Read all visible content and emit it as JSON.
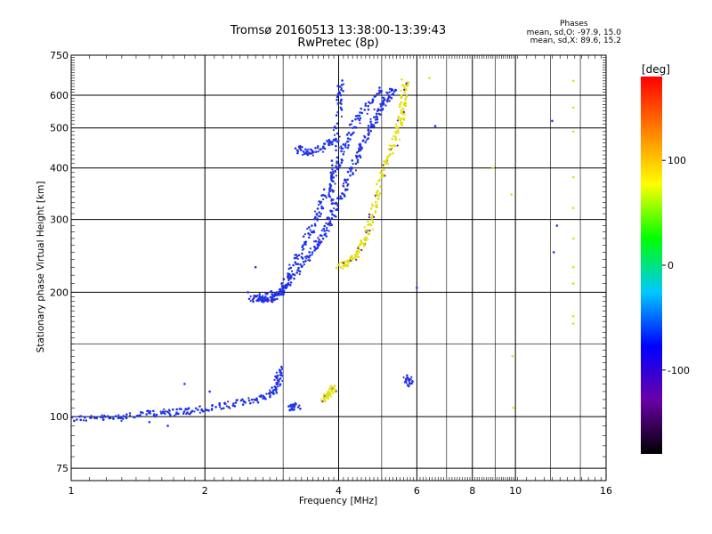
{
  "header": {
    "title_line1": "Tromsø 20160513 13:38:00-13:39:43",
    "title_line2": "RwPretec (8p)"
  },
  "phases_box": {
    "title": "Phases",
    "line_o": "mean, sd,O: -97.9, 15.0",
    "line_x": "mean, sd,X:  89.6, 15.2"
  },
  "chart_data": {
    "type": "scatter",
    "xlabel": "Frequency [MHz]",
    "ylabel": "Stationary phase Virtual Height [km]",
    "x_scale": "log",
    "y_scale": "log",
    "xlim": [
      1,
      16
    ],
    "ylim": [
      70,
      750
    ],
    "x_ticks": [
      1,
      2,
      4,
      6,
      8,
      10,
      16
    ],
    "x_minor_ticks": [
      3,
      5,
      7,
      9,
      12,
      14
    ],
    "y_ticks": [
      75,
      100,
      200,
      300,
      400,
      500,
      600,
      750
    ],
    "y_minor_ticks": [
      150
    ],
    "grid": true,
    "colorbar": {
      "label": "[deg]",
      "range": [
        -180,
        180
      ],
      "ticks": [
        -100,
        0,
        100
      ],
      "colors": [
        "#000000",
        "#6a00a8",
        "#0000ff",
        "#00c8ff",
        "#00ff00",
        "#ffff00",
        "#ff8000",
        "#ff0000"
      ]
    },
    "series": [
      {
        "polarization": "O",
        "color": "#1a33ee",
        "segments": [
          {
            "points": [
              [
                1.0,
                99
              ],
              [
                1.2,
                99
              ],
              [
                1.4,
                101
              ],
              [
                1.6,
                102
              ],
              [
                1.8,
                103
              ],
              [
                2.0,
                104
              ],
              [
                2.3,
                107
              ],
              [
                2.6,
                110
              ],
              [
                2.85,
                114
              ],
              [
                2.92,
                122
              ],
              [
                2.95,
                130
              ]
            ]
          },
          {
            "points": [
              [
                2.55,
                193
              ],
              [
                2.7,
                192
              ],
              [
                2.85,
                193
              ],
              [
                2.95,
                199
              ],
              [
                3.05,
                210
              ],
              [
                3.3,
                232
              ],
              [
                3.5,
                252
              ],
              [
                3.7,
                277
              ],
              [
                3.9,
                310
              ],
              [
                4.1,
                350
              ],
              [
                4.3,
                400
              ],
              [
                4.5,
                450
              ],
              [
                4.7,
                500
              ],
              [
                4.9,
                540
              ],
              [
                5.1,
                580
              ],
              [
                5.3,
                620
              ]
            ]
          },
          {
            "points": [
              [
                2.55,
                193
              ],
              [
                2.95,
                199
              ],
              [
                3.1,
                220
              ],
              [
                3.3,
                255
              ],
              [
                3.5,
                290
              ],
              [
                3.7,
                335
              ],
              [
                3.9,
                380
              ],
              [
                4.1,
                440
              ],
              [
                4.3,
                500
              ],
              [
                4.6,
                560
              ],
              [
                5.0,
                620
              ]
            ]
          },
          {
            "points": [
              [
                3.2,
                445
              ],
              [
                3.4,
                435
              ],
              [
                3.7,
                450
              ],
              [
                3.9,
                470
              ]
            ]
          },
          {
            "points": [
              [
                3.8,
                300
              ],
              [
                3.9,
                400
              ],
              [
                4.0,
                560
              ],
              [
                4.05,
                650
              ]
            ]
          },
          {
            "points": [
              [
                3.1,
                105
              ],
              [
                3.25,
                106
              ]
            ]
          },
          {
            "points": [
              [
                5.65,
                125
              ],
              [
                5.8,
                120
              ]
            ]
          }
        ],
        "scatter": [
          [
            1.5,
            97
          ],
          [
            1.65,
            95
          ],
          [
            1.8,
            120
          ],
          [
            2.05,
            115
          ],
          [
            2.5,
            200
          ],
          [
            2.6,
            230
          ],
          [
            3.05,
            205
          ],
          [
            6.0,
            205
          ],
          [
            6.6,
            505
          ],
          [
            12.1,
            520
          ],
          [
            12.2,
            250
          ],
          [
            12.4,
            290
          ]
        ]
      },
      {
        "polarization": "X",
        "color": "#e0e010",
        "segments": [
          {
            "points": [
              [
                4.0,
                232
              ],
              [
                4.2,
                235
              ],
              [
                4.4,
                248
              ],
              [
                4.55,
                265
              ],
              [
                4.7,
                290
              ],
              [
                4.85,
                330
              ],
              [
                5.0,
                380
              ],
              [
                5.2,
                430
              ],
              [
                5.45,
                490
              ],
              [
                5.55,
                540
              ],
              [
                5.6,
                590
              ],
              [
                5.65,
                650
              ]
            ]
          },
          {
            "points": [
              [
                3.7,
                110
              ],
              [
                3.8,
                113
              ],
              [
                3.9,
                118
              ]
            ]
          }
        ],
        "scatter": [
          [
            5.55,
            655
          ],
          [
            6.4,
            660
          ],
          [
            8.9,
            400
          ],
          [
            9.8,
            345
          ],
          [
            9.85,
            140
          ],
          [
            9.9,
            105
          ],
          [
            13.5,
            650
          ],
          [
            13.5,
            560
          ],
          [
            13.5,
            490
          ],
          [
            13.5,
            380
          ],
          [
            13.5,
            320
          ],
          [
            13.5,
            270
          ],
          [
            13.5,
            230
          ],
          [
            13.5,
            210
          ],
          [
            13.5,
            175
          ],
          [
            13.5,
            168
          ]
        ]
      }
    ]
  }
}
